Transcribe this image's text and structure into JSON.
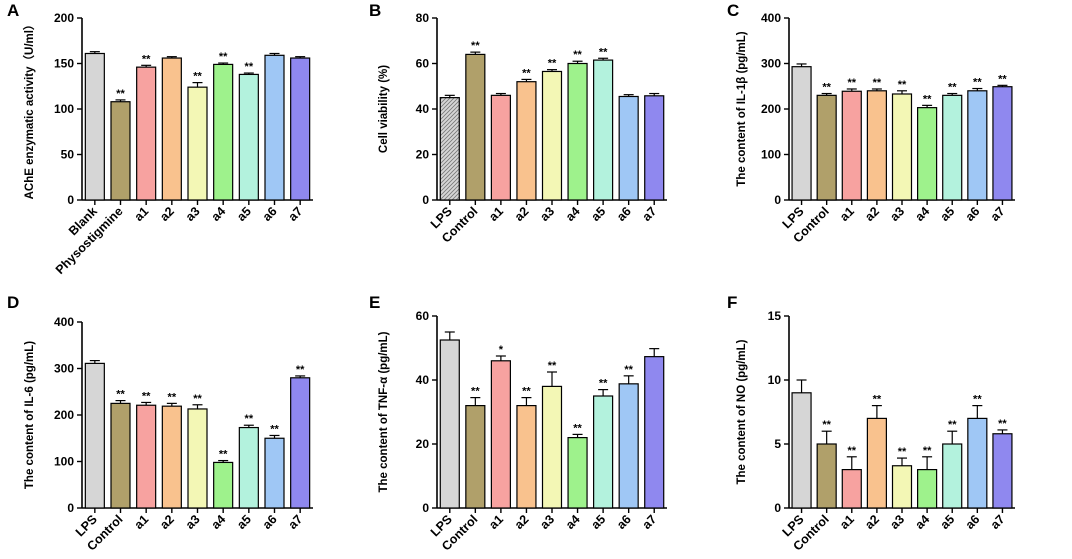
{
  "colors": {
    "Blank": "#d6d6d6",
    "LPS": "#d6d6d6",
    "Physostigmine": "#b0a06a",
    "Control": "#b0a06a",
    "a1": "#f7a2a0",
    "a2": "#f9c28e",
    "a3": "#f3f7b5",
    "a4": "#9ef28c",
    "a5": "#b3f2dd",
    "a6": "#9fc7f5",
    "a7": "#8f88ef"
  },
  "chart_data": [
    {
      "type": "bar",
      "panel": "A",
      "ylabel": "AChE enzymatic activity（U/ml）",
      "ylim": [
        0,
        200
      ],
      "yticks": [
        0,
        50,
        100,
        150,
        200
      ],
      "categories": [
        "Blank",
        "Physostigmine",
        "a1",
        "a2",
        "a3",
        "a4",
        "a5",
        "a6",
        "a7"
      ],
      "values": [
        161,
        108,
        146,
        156,
        124,
        149,
        138,
        159,
        156
      ],
      "errors": [
        2,
        2,
        2,
        1.5,
        5,
        1.5,
        1.5,
        2,
        1.5
      ],
      "significance": [
        "",
        "**",
        "**",
        "",
        "**",
        "**",
        "**",
        "",
        ""
      ]
    },
    {
      "type": "bar",
      "panel": "B",
      "ylabel": "Cell viability (%)",
      "ylim": [
        0,
        80
      ],
      "yticks": [
        0,
        20,
        40,
        60,
        80
      ],
      "categories": [
        "LPS",
        "Control",
        "a1",
        "a2",
        "a3",
        "a4",
        "a5",
        "a6",
        "a7"
      ],
      "values": [
        45,
        64,
        46,
        52,
        56.5,
        60,
        61.5,
        45.5,
        45.8
      ],
      "errors": [
        1,
        1,
        0.8,
        1,
        0.8,
        1,
        0.8,
        0.8,
        1
      ],
      "significance": [
        "",
        "**",
        "",
        "**",
        "**",
        "**",
        "**",
        "",
        ""
      ],
      "hatched": [
        "LPS"
      ]
    },
    {
      "type": "bar",
      "panel": "C",
      "ylabel": "The content of IL-1β (pg/mL)",
      "ylim": [
        0,
        400
      ],
      "yticks": [
        0,
        100,
        200,
        300,
        400
      ],
      "categories": [
        "LPS",
        "Control",
        "a1",
        "a2",
        "a3",
        "a4",
        "a5",
        "a6",
        "a7"
      ],
      "values": [
        293,
        230,
        239,
        240,
        233,
        203,
        230,
        240,
        249
      ],
      "errors": [
        6,
        4,
        5,
        4,
        7,
        5,
        4,
        5,
        3
      ],
      "significance": [
        "",
        "**",
        "**",
        "**",
        "**",
        "**",
        "**",
        "**",
        "**"
      ]
    },
    {
      "type": "bar",
      "panel": "D",
      "ylabel": "The content of IL-6 (pg/mL)",
      "ylim": [
        0,
        400
      ],
      "yticks": [
        0,
        100,
        200,
        300,
        400
      ],
      "categories": [
        "LPS",
        "Control",
        "a1",
        "a2",
        "a3",
        "a4",
        "a5",
        "a6",
        "a7"
      ],
      "values": [
        311,
        225,
        221,
        219,
        213,
        98,
        173,
        150,
        280
      ],
      "errors": [
        6,
        6,
        6,
        6,
        9,
        4,
        5,
        6,
        4
      ],
      "significance": [
        "",
        "**",
        "**",
        "**",
        "**",
        "**",
        "**",
        "**",
        "**"
      ]
    },
    {
      "type": "bar",
      "panel": "E",
      "ylabel": "The content of TNF-α (pg/mL)",
      "ylim": [
        0,
        60
      ],
      "yticks": [
        0,
        20,
        40,
        60
      ],
      "categories": [
        "LPS",
        "Control",
        "a1",
        "a2",
        "a3",
        "a4",
        "a5",
        "a6",
        "a7"
      ],
      "values": [
        52.5,
        32,
        46,
        32,
        38,
        22,
        35,
        38.8,
        47.3
      ],
      "errors": [
        2.5,
        2.5,
        1.5,
        2.5,
        4.5,
        1,
        2,
        2.5,
        2.5
      ],
      "significance": [
        "",
        "**",
        "*",
        "**",
        "**",
        "**",
        "**",
        "**",
        ""
      ]
    },
    {
      "type": "bar",
      "panel": "F",
      "ylabel": "The content of NO (pg/mL)",
      "ylim": [
        0,
        15
      ],
      "yticks": [
        0,
        5,
        10,
        15
      ],
      "categories": [
        "LPS",
        "Control",
        "a1",
        "a2",
        "a3",
        "a4",
        "a5",
        "a6",
        "a7"
      ],
      "values": [
        9,
        5,
        3,
        7,
        3.3,
        3,
        5,
        7,
        5.8
      ],
      "errors": [
        1,
        1,
        1,
        1,
        0.6,
        1,
        1,
        1,
        0.3
      ],
      "significance": [
        "",
        "**",
        "**",
        "**",
        "**",
        "**",
        "**",
        "**",
        "**"
      ]
    }
  ]
}
